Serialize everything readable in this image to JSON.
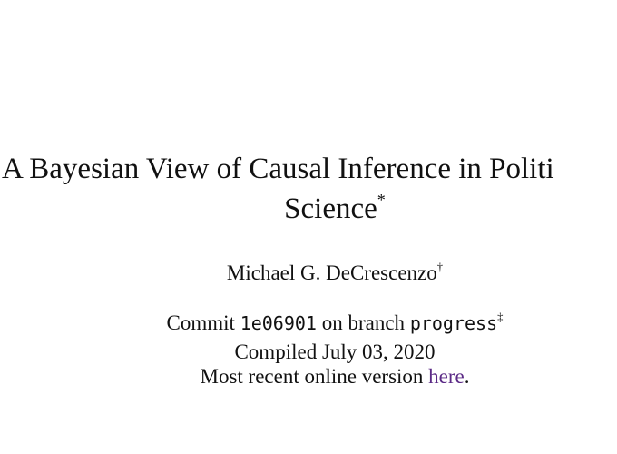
{
  "title": {
    "line1": "A Bayesian View of Causal Inference in Politi",
    "line2": "Science",
    "footnote_mark": "*"
  },
  "author": {
    "name": "Michael G. DeCrescenzo",
    "footnote_mark": "†"
  },
  "commit": {
    "prefix": "Commit",
    "hash": "1e06901",
    "middle": "on branch",
    "branch": "progress",
    "footnote_mark": "‡"
  },
  "compiled": {
    "text": "Compiled July 03, 2020"
  },
  "online": {
    "prefix": "Most recent online version",
    "link_text": "here",
    "suffix": "."
  },
  "colors": {
    "link": "#5b2a86",
    "text": "#111111"
  }
}
